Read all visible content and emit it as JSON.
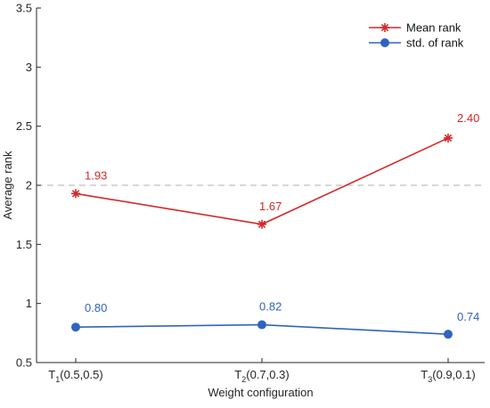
{
  "chart_data": {
    "type": "line",
    "title": "",
    "xlabel": "Weight configuration",
    "ylabel": "Average rank",
    "categories": [
      {
        "base": "T",
        "sub": "1",
        "rest": "(0.5,0.5)"
      },
      {
        "base": "T",
        "sub": "2",
        "rest": "(0.7,0.3)"
      },
      {
        "base": "T",
        "sub": "3",
        "rest": "(0.9,0.1)"
      }
    ],
    "ylim": [
      0.5,
      3.5
    ],
    "yticks": [
      0.5,
      1,
      1.5,
      2,
      2.5,
      3,
      3.5
    ],
    "ytick_labels": [
      "0.5",
      "1",
      "1.5",
      "2",
      "2.5",
      "3",
      "3.5"
    ],
    "reference_line": {
      "y": 2,
      "style": "dashed",
      "color": "#bfbfbf"
    },
    "grid": false,
    "legend_position": "top-right",
    "series": [
      {
        "name": "Mean rank",
        "values": [
          1.93,
          1.67,
          2.4
        ],
        "labels": [
          "1.93",
          "1.67",
          "2.40"
        ],
        "color": "#d62728",
        "marker": "asterisk"
      },
      {
        "name": "std. of rank",
        "values": [
          0.8,
          0.82,
          0.74
        ],
        "labels": [
          "0.80",
          "0.82",
          "0.74"
        ],
        "color": "#2e64c0",
        "marker": "circle"
      }
    ]
  }
}
